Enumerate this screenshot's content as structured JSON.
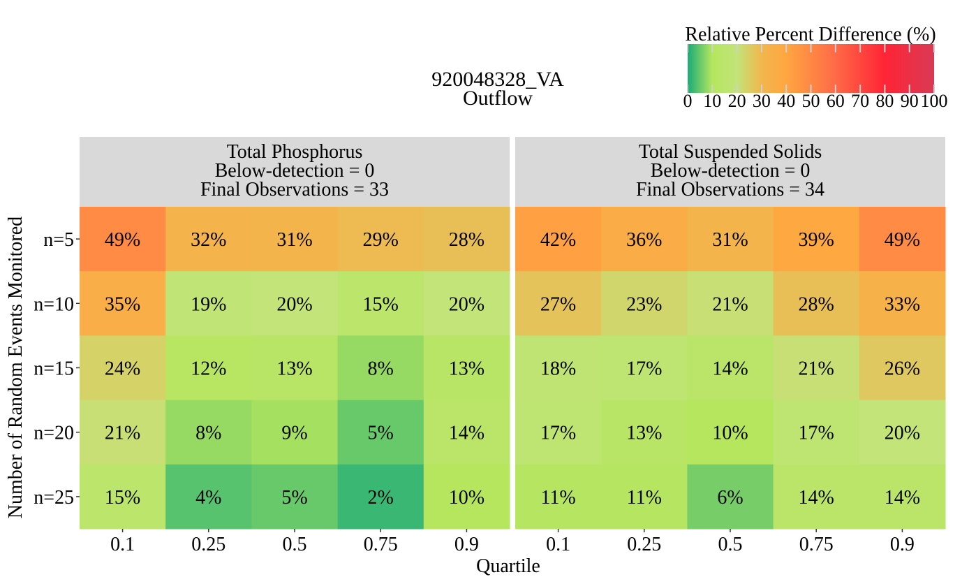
{
  "chart_data": {
    "type": "heatmap",
    "title": "920048328_VA",
    "subtitle": "Outflow",
    "xlabel": "Quartile",
    "ylabel": "Number of Random Events Monitored",
    "categories": [
      "0.1",
      "0.25",
      "0.5",
      "0.75",
      "0.9"
    ],
    "rows": [
      "n=5",
      "n=10",
      "n=15",
      "n=20",
      "n=25"
    ],
    "value_format_suffix": "%",
    "legend": {
      "title": "Relative Percent Difference (%)",
      "position": "top-right",
      "ticks": [
        0,
        10,
        20,
        30,
        40,
        50,
        60,
        70,
        80,
        90,
        100
      ],
      "range": [
        0,
        100
      ],
      "colors": [
        {
          "value": 0,
          "color": "#1aab78"
        },
        {
          "value": 10,
          "color": "#b5e65e"
        },
        {
          "value": 20,
          "color": "#c2e479"
        },
        {
          "value": 30,
          "color": "#f2b64d"
        },
        {
          "value": 40,
          "color": "#ffa641"
        },
        {
          "value": 60,
          "color": "#ff6a47"
        },
        {
          "value": 80,
          "color": "#ff2436"
        },
        {
          "value": 100,
          "color": "#d93a55"
        }
      ]
    },
    "panels": [
      {
        "name": "Total Phosphorus",
        "below_detection": "Below-detection = 0",
        "final_observations": "Final Observations = 33",
        "values": [
          [
            49,
            32,
            31,
            29,
            28
          ],
          [
            35,
            19,
            20,
            15,
            20
          ],
          [
            24,
            12,
            13,
            8,
            13
          ],
          [
            21,
            8,
            9,
            5,
            14
          ],
          [
            15,
            4,
            5,
            2,
            10
          ]
        ]
      },
      {
        "name": "Total Suspended Solids",
        "below_detection": "Below-detection = 0",
        "final_observations": "Final Observations = 34",
        "values": [
          [
            42,
            36,
            31,
            39,
            49
          ],
          [
            27,
            23,
            21,
            28,
            33
          ],
          [
            18,
            17,
            14,
            21,
            26
          ],
          [
            17,
            13,
            10,
            17,
            20
          ],
          [
            11,
            11,
            6,
            14,
            14
          ]
        ]
      }
    ]
  }
}
